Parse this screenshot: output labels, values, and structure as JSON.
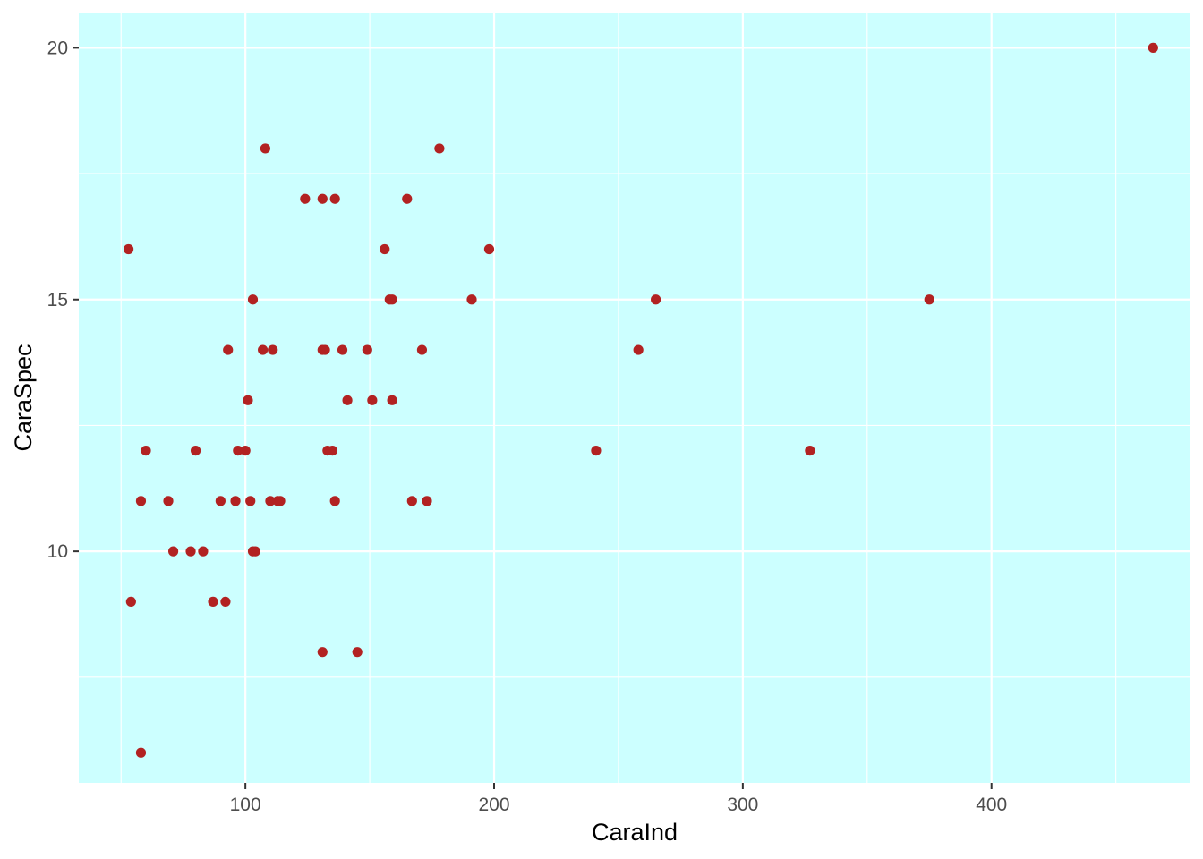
{
  "chart_data": {
    "type": "scatter",
    "title": "",
    "xlabel": "CaraInd",
    "ylabel": "CaraSpec",
    "xlim": [
      33,
      480
    ],
    "ylim": [
      5.4,
      20.7
    ],
    "x_ticks": [
      100,
      200,
      300,
      400
    ],
    "x_tick_labels": [
      "100",
      "200",
      "300",
      "400"
    ],
    "x_minor_ticks": [
      50,
      150,
      250,
      350,
      450
    ],
    "y_ticks": [
      10,
      15,
      20
    ],
    "y_tick_labels": [
      "10",
      "15",
      "20"
    ],
    "y_minor_ticks": [
      7.5,
      12.5,
      17.5
    ],
    "grid": true,
    "colors": {
      "panel_background": "#ccffff",
      "point": "#b22222",
      "grid": "#ffffff",
      "tick_label": "#4d4d4d",
      "tick_mark": "#333333"
    },
    "series": [
      {
        "x": [
          465,
          108,
          178,
          124,
          131,
          136,
          165,
          53,
          156,
          198,
          103,
          158,
          159,
          191,
          265,
          375,
          93,
          107,
          111,
          131,
          132,
          139,
          149,
          171,
          258,
          101,
          141,
          151,
          159,
          60,
          80,
          97,
          100,
          133,
          135,
          241,
          327,
          58,
          69,
          90,
          96,
          102,
          110,
          113,
          114,
          136,
          167,
          173,
          71,
          78,
          83,
          103,
          104,
          54,
          87,
          92,
          131,
          145,
          58
        ],
        "y": [
          20,
          18,
          18,
          17,
          17,
          17,
          17,
          16,
          16,
          16,
          15,
          15,
          15,
          15,
          15,
          15,
          14,
          14,
          14,
          14,
          14,
          14,
          14,
          14,
          14,
          13,
          13,
          13,
          13,
          12,
          12,
          12,
          12,
          12,
          12,
          12,
          12,
          11,
          11,
          11,
          11,
          11,
          11,
          11,
          11,
          11,
          11,
          11,
          10,
          10,
          10,
          10,
          10,
          9,
          9,
          9,
          8,
          8,
          6
        ]
      }
    ]
  }
}
